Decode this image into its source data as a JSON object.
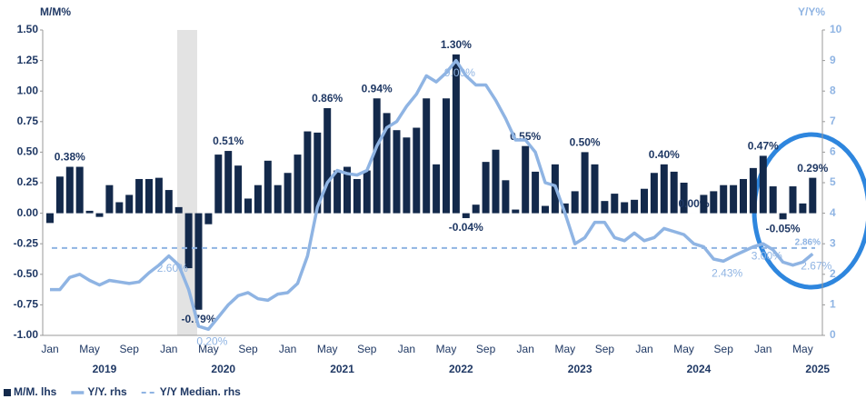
{
  "chart_data": {
    "type": "bar_line",
    "y_title": "M/M%",
    "y2_title": "Y/Y%",
    "categories": [
      "Jan",
      null,
      null,
      null,
      "May",
      null,
      null,
      null,
      "Sep",
      null,
      null,
      null,
      "Jan",
      null,
      null,
      null,
      "May",
      null,
      null,
      null,
      "Sep",
      null,
      null,
      null,
      "Jan",
      null,
      null,
      null,
      "May",
      null,
      null,
      null,
      "Sep",
      null,
      null,
      null,
      "Jan",
      null,
      null,
      null,
      "May",
      null,
      null,
      null,
      "Sep",
      null,
      null,
      null,
      "Jan",
      null,
      null,
      null,
      "May",
      null,
      null,
      null,
      "Sep",
      null,
      null,
      null,
      "Jan",
      null,
      null,
      null,
      "May",
      null,
      null,
      null,
      "Sep",
      null,
      null,
      null,
      "Jan",
      null,
      null,
      null,
      "May",
      null
    ],
    "year_labels": [
      "2019",
      "2020",
      "2021",
      "2022",
      "2023",
      "2024",
      "2025"
    ],
    "series": [
      {
        "name": "M/M. lhs",
        "color": "#13294b",
        "kind": "bar",
        "values": [
          -0.08,
          0.3,
          0.38,
          0.38,
          0.02,
          -0.03,
          0.23,
          0.09,
          0.15,
          0.28,
          0.28,
          0.29,
          0.19,
          0.05,
          -0.45,
          -0.79,
          -0.09,
          0.48,
          0.51,
          0.39,
          0.12,
          0.23,
          0.43,
          0.23,
          0.33,
          0.48,
          0.67,
          0.66,
          0.86,
          0.35,
          0.38,
          0.28,
          0.35,
          0.94,
          0.82,
          0.68,
          0.62,
          0.7,
          0.94,
          0.4,
          0.94,
          1.3,
          -0.04,
          0.07,
          0.42,
          0.52,
          0.27,
          0.03,
          0.55,
          0.34,
          0.06,
          0.4,
          0.08,
          0.18,
          0.5,
          0.4,
          0.1,
          0.16,
          0.09,
          0.11,
          0.2,
          0.33,
          0.4,
          0.34,
          0.25,
          0.0,
          0.15,
          0.18,
          0.23,
          0.23,
          0.28,
          0.37,
          0.47,
          0.22,
          -0.05,
          0.22,
          0.08,
          0.29
        ],
        "value_labels": [
          null,
          null,
          "0.38%",
          null,
          null,
          null,
          null,
          null,
          null,
          null,
          null,
          null,
          null,
          null,
          null,
          "-0.79%",
          null,
          null,
          "0.51%",
          null,
          null,
          null,
          null,
          null,
          null,
          null,
          null,
          null,
          "0.86%",
          null,
          null,
          null,
          null,
          "0.94%",
          null,
          null,
          null,
          null,
          null,
          null,
          null,
          "1.30%",
          "-0.04%",
          null,
          null,
          null,
          null,
          null,
          "0.55%",
          null,
          null,
          null,
          null,
          null,
          "0.50%",
          null,
          null,
          null,
          null,
          null,
          null,
          null,
          "0.40%",
          null,
          null,
          "0.00%",
          null,
          null,
          null,
          null,
          null,
          null,
          "0.47%",
          null,
          "-0.05%",
          null,
          null,
          "0.29%"
        ]
      },
      {
        "name": "Y/Y. rhs",
        "color": "#8fb4e3",
        "kind": "line",
        "axis": "y2",
        "values": [
          1.5,
          1.5,
          1.9,
          2.0,
          1.8,
          1.65,
          1.8,
          1.75,
          1.7,
          1.75,
          2.05,
          2.3,
          2.6,
          2.3,
          1.5,
          0.3,
          0.2,
          0.6,
          1.0,
          1.3,
          1.4,
          1.2,
          1.15,
          1.35,
          1.4,
          1.7,
          2.6,
          4.2,
          5.0,
          5.4,
          5.3,
          5.25,
          5.4,
          6.2,
          6.8,
          7.0,
          7.5,
          7.9,
          8.5,
          8.3,
          8.6,
          9.0,
          8.5,
          8.2,
          8.2,
          7.7,
          7.1,
          6.4,
          6.4,
          6.0,
          5.0,
          4.9,
          4.0,
          3.0,
          3.2,
          3.7,
          3.7,
          3.2,
          3.1,
          3.35,
          3.1,
          3.2,
          3.5,
          3.4,
          3.3,
          3.0,
          2.9,
          2.5,
          2.43,
          2.6,
          2.75,
          2.9,
          3.0,
          2.8,
          2.4,
          2.3,
          2.4,
          2.67
        ],
        "value_labels": [
          null,
          null,
          null,
          null,
          null,
          null,
          null,
          null,
          null,
          null,
          null,
          null,
          "2.60%",
          null,
          null,
          null,
          "0.20%",
          null,
          null,
          null,
          null,
          null,
          null,
          null,
          null,
          null,
          null,
          null,
          null,
          null,
          null,
          null,
          null,
          null,
          null,
          null,
          null,
          null,
          null,
          null,
          null,
          "9.00%",
          null,
          null,
          null,
          null,
          null,
          null,
          null,
          null,
          null,
          null,
          null,
          null,
          null,
          null,
          null,
          null,
          null,
          null,
          null,
          null,
          null,
          null,
          null,
          null,
          null,
          null,
          "2.43%",
          null,
          null,
          null,
          "3.00%",
          null,
          null,
          null,
          null,
          "2.67%"
        ]
      }
    ],
    "median": {
      "name": "Y/Y Median. rhs",
      "color": "#8fb4e3",
      "axis": "y2",
      "value": 2.86,
      "value_label": "2.86%"
    },
    "ylim": [
      -1,
      1.5
    ],
    "yticks": [
      {
        "value": -1,
        "label": "-1.00"
      },
      {
        "value": -0.75,
        "label": "-0.75"
      },
      {
        "value": -0.5,
        "label": "-0.50"
      },
      {
        "value": -0.25,
        "label": "-0.25"
      },
      {
        "value": 0,
        "label": "0.00"
      },
      {
        "value": 0.25,
        "label": "0.25"
      },
      {
        "value": 0.5,
        "label": "0.50"
      },
      {
        "value": 0.75,
        "label": "0.75"
      },
      {
        "value": 1,
        "label": "1.00"
      },
      {
        "value": 1.25,
        "label": "1.25"
      },
      {
        "value": 1.5,
        "label": "1.50"
      }
    ],
    "y2lim": [
      0,
      10
    ],
    "y2ticks": [
      0,
      1,
      2,
      3,
      4,
      5,
      6,
      7,
      8,
      9,
      10
    ],
    "grid": false
  }
}
